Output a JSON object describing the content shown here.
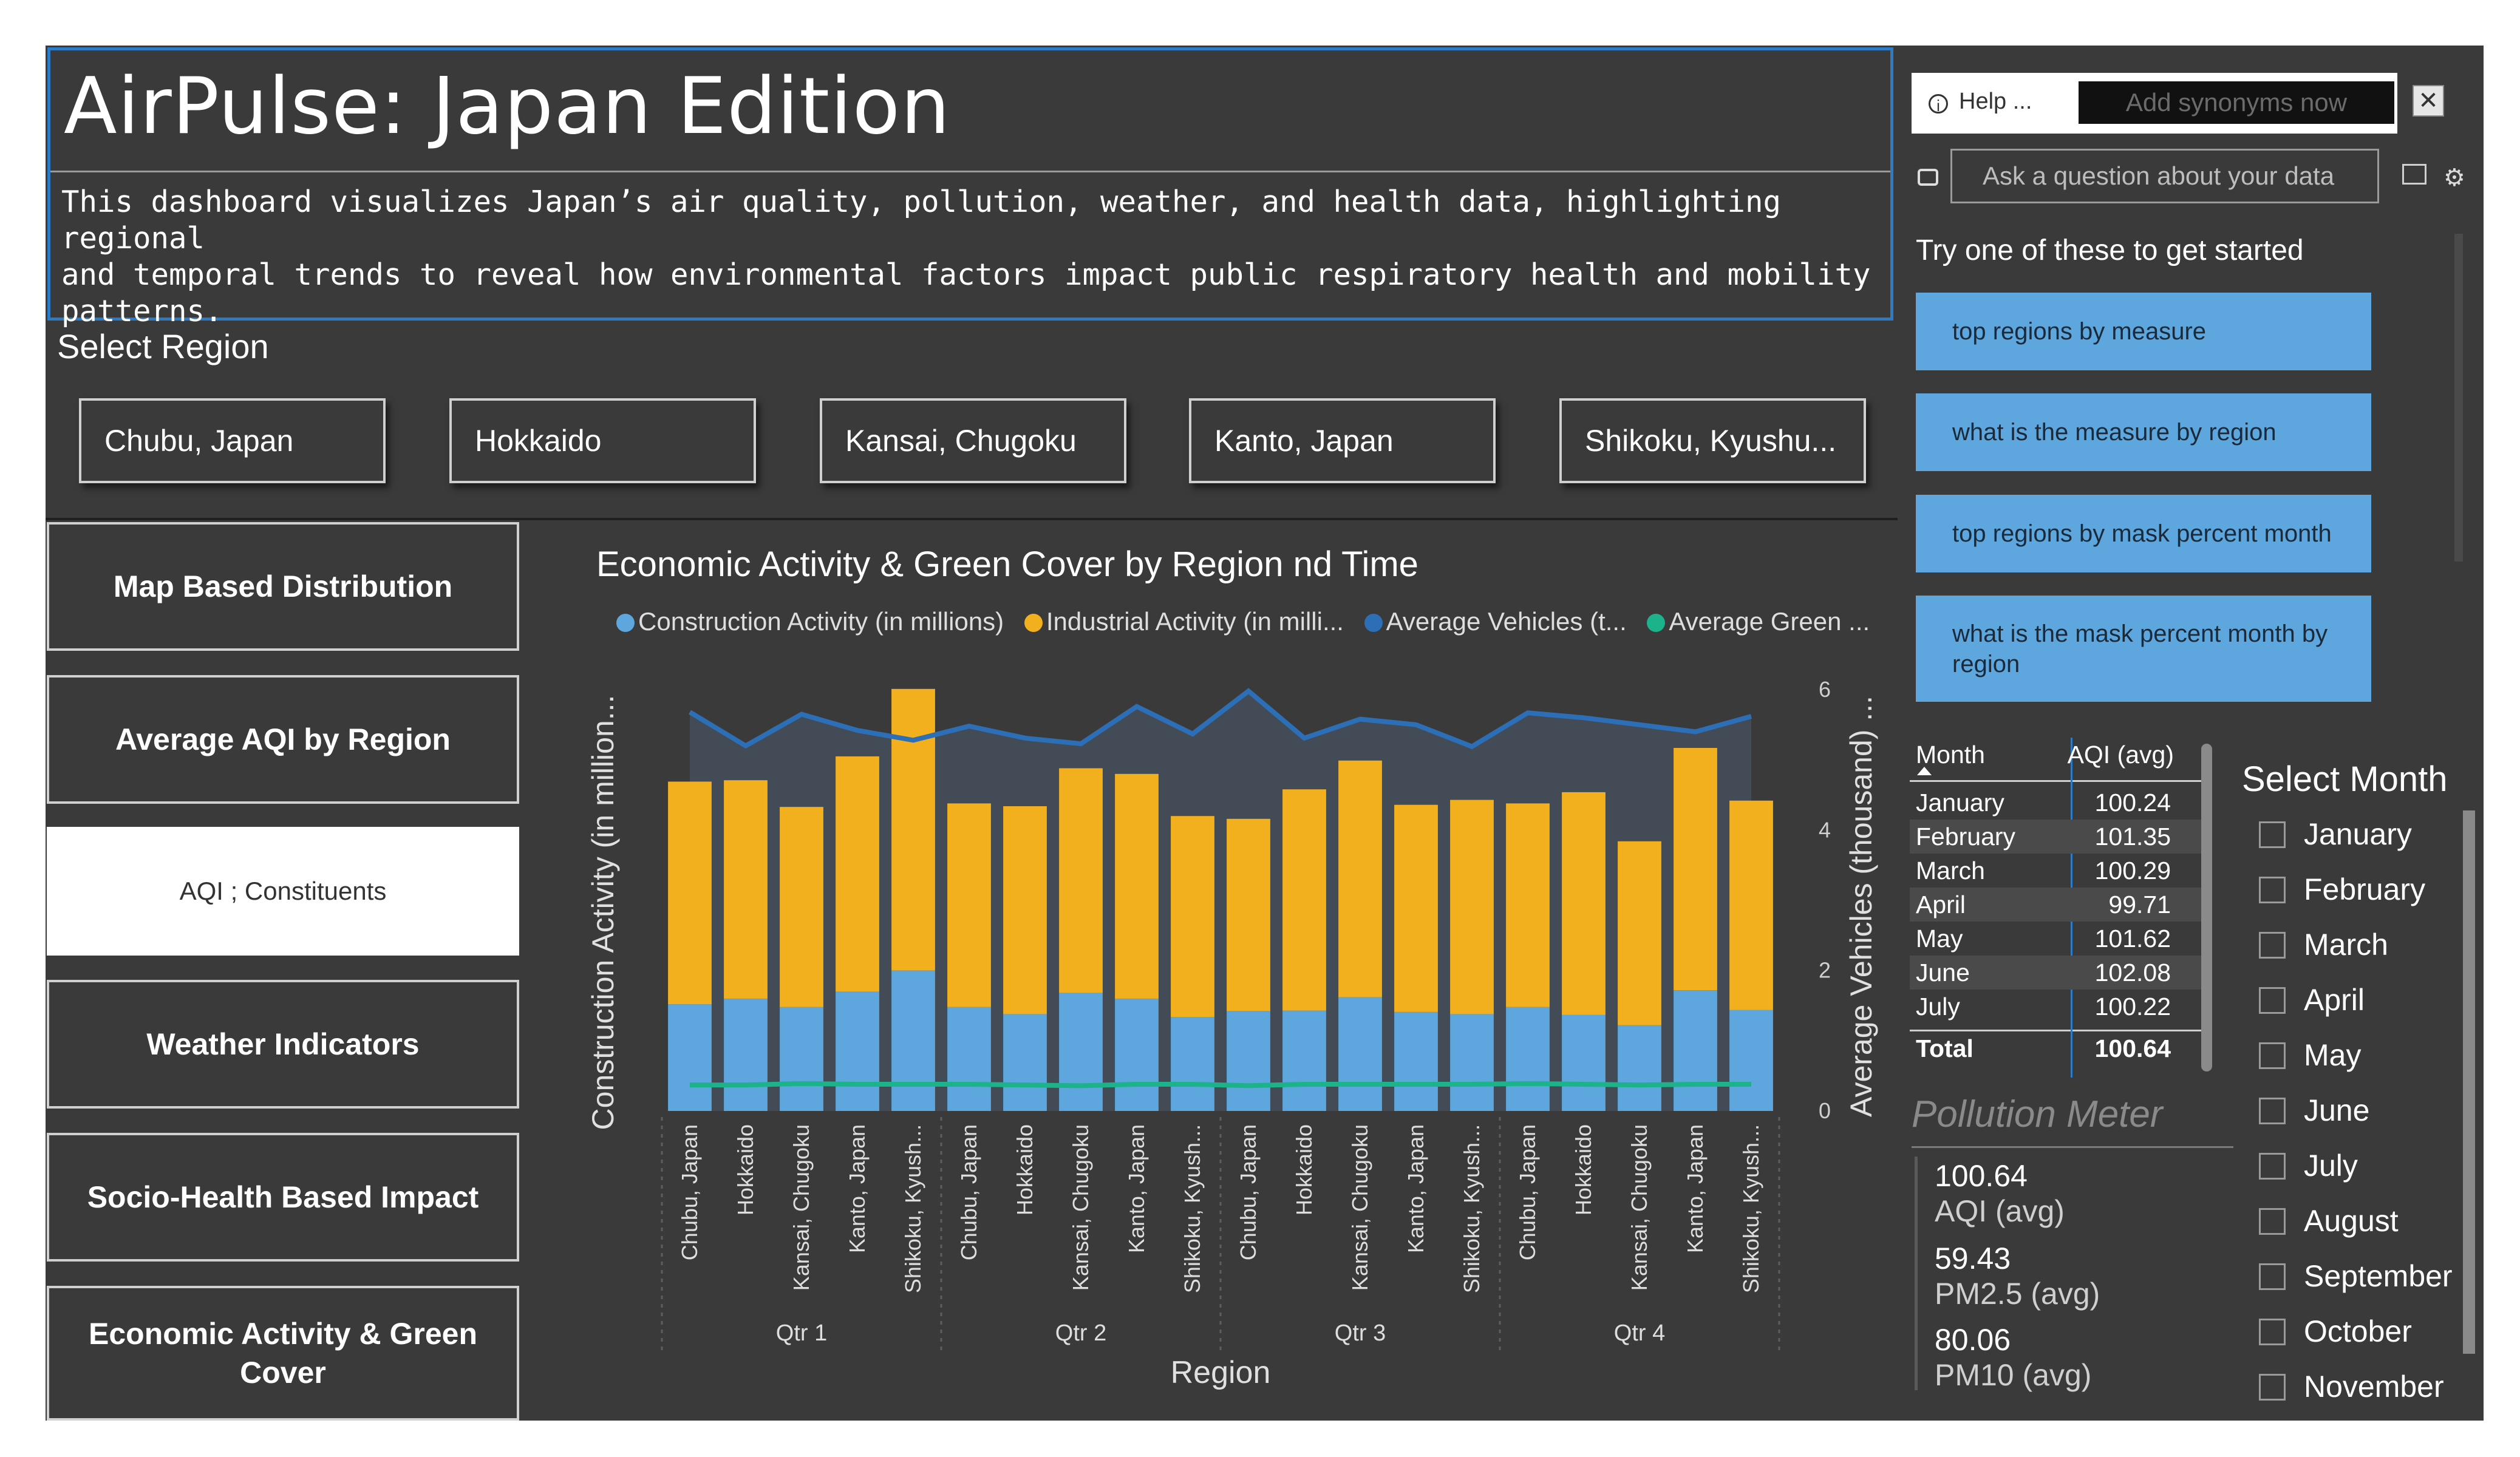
{
  "header": {
    "title": "AirPulse: Japan Edition",
    "description": "This dashboard visualizes Japan’s air quality, pollution, weather, and health data, highlighting regional\nand temporal trends to reveal how environmental factors impact public respiratory health and mobility\npatterns."
  },
  "region_slicer": {
    "title": "Select Region",
    "options": [
      "Chubu, Japan",
      "Hokkaido",
      "Kansai, Chugoku",
      "Kanto, Japan",
      "Shikoku, Kyushu..."
    ]
  },
  "nav": {
    "items": [
      "Map Based Distribution",
      "Average AQI by Region",
      "AQI ; Constituents",
      "Weather Indicators",
      "Socio-Health Based Impact",
      "Economic Activity & Green Cover"
    ],
    "active_index": 2
  },
  "chart_data": {
    "type": "bar",
    "title": "Economic Activity & Green Cover by Region nd Time",
    "legend": [
      {
        "label": "Construction Activity (in millions)",
        "color": "#5da7de"
      },
      {
        "label": "Industrial Activity (in milli...",
        "color": "#f2b01e"
      },
      {
        "label": "Average Vehicles (t...",
        "color": "#2d6fb7"
      },
      {
        "label": "Average Green ...",
        "color": "#1db38a"
      }
    ],
    "xlabel": "Region",
    "ylabel": "Construction Activity (in million...",
    "y2label": "Average Vehicles (thousand) ...",
    "y2_ticks": [
      "0",
      "2",
      "4",
      "6"
    ],
    "y2lim": [
      0,
      6
    ],
    "quarters": [
      "Qtr 1",
      "Qtr 2",
      "Qtr 3",
      "Qtr 4"
    ],
    "categories": [
      "Chubu, Japan",
      "Hokkaido",
      "Kansai, Chugoku",
      "Kanto, Japan",
      "Shikoku, Kyush...",
      "Chubu, Japan",
      "Hokkaido",
      "Kansai, Chugoku",
      "Kanto, Japan",
      "Shikoku, Kyush...",
      "Chubu, Japan",
      "Hokkaido",
      "Kansai, Chugoku",
      "Kanto, Japan",
      "Shikoku, Kyush...",
      "Chubu, Japan",
      "Hokkaido",
      "Kansai, Chugoku",
      "Kanto, Japan",
      "Shikoku, Kyush..."
    ],
    "ylim": [
      0,
      6
    ],
    "series": [
      {
        "name": "Construction Activity (in millions)",
        "values": [
          1.52,
          1.6,
          1.48,
          1.7,
          2.0,
          1.48,
          1.38,
          1.68,
          1.6,
          1.34,
          1.42,
          1.43,
          1.62,
          1.41,
          1.38,
          1.48,
          1.37,
          1.22,
          1.72,
          1.44
        ]
      },
      {
        "name": "Industrial Activity (in milli...",
        "values": [
          3.17,
          3.11,
          2.85,
          3.35,
          4.01,
          2.9,
          2.96,
          3.2,
          3.2,
          2.86,
          2.74,
          3.15,
          3.37,
          2.95,
          3.05,
          2.9,
          3.17,
          2.62,
          3.45,
          2.98
        ]
      },
      {
        "name": "Average Vehicles (t...",
        "values": [
          5.68,
          5.2,
          5.65,
          5.42,
          5.28,
          5.48,
          5.31,
          5.23,
          5.76,
          5.37,
          5.98,
          5.31,
          5.58,
          5.5,
          5.19,
          5.67,
          5.6,
          5.5,
          5.4,
          5.62
        ]
      },
      {
        "name": "Average Green ...",
        "values": [
          0.37,
          0.37,
          0.39,
          0.38,
          0.38,
          0.38,
          0.37,
          0.36,
          0.38,
          0.38,
          0.36,
          0.38,
          0.38,
          0.38,
          0.38,
          0.39,
          0.38,
          0.37,
          0.38,
          0.38
        ]
      }
    ]
  },
  "qa": {
    "help_label": "Help ...",
    "synonyms_button": "Add synonyms now",
    "close_glyph": "✕",
    "input_placeholder": "Ask a question about your data",
    "start_label": "Try one of these to get started",
    "suggestions": [
      "top regions by measure",
      "what is the measure by region",
      "top regions by mask percent month",
      "what is the mask percent month by region"
    ]
  },
  "aqi_table": {
    "headers": [
      "Month",
      "AQI (avg)"
    ],
    "rows": [
      [
        "January",
        "100.24"
      ],
      [
        "February",
        "101.35"
      ],
      [
        "March",
        "100.29"
      ],
      [
        "April",
        "99.71"
      ],
      [
        "May",
        "101.62"
      ],
      [
        "June",
        "102.08"
      ],
      [
        "July",
        "100.22"
      ]
    ],
    "total": [
      "Total",
      "100.64"
    ]
  },
  "pollution_meter": {
    "title": "Pollution Meter",
    "cards": [
      {
        "value": "100.64",
        "label": "AQI (avg)"
      },
      {
        "value": "59.43",
        "label": "PM2.5 (avg)"
      },
      {
        "value": "80.06",
        "label": "PM10 (avg)"
      }
    ]
  },
  "month_slicer": {
    "title": "Select Month",
    "options": [
      "January",
      "February",
      "March",
      "April",
      "May",
      "June",
      "July",
      "August",
      "September",
      "October",
      "November"
    ]
  },
  "icons": {
    "help": "info-icon",
    "chat": "chat-icon",
    "share": "share-icon",
    "settings": "gear-icon"
  }
}
